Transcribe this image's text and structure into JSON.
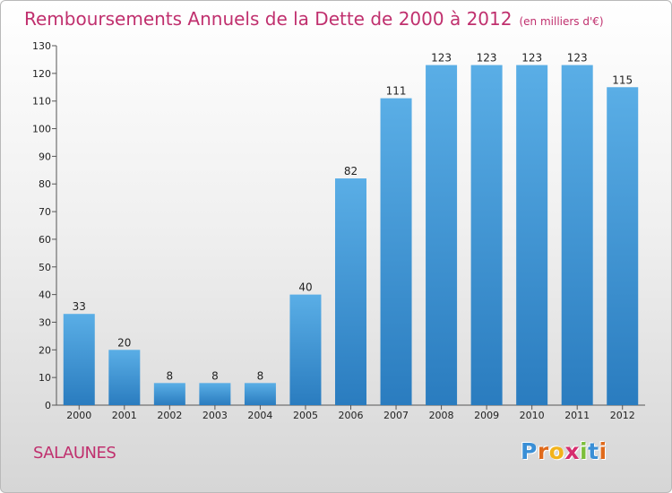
{
  "header": {
    "title": "Remboursements Annuels de la Dette de 2000 à 2012",
    "unit": "(en milliers d'€)"
  },
  "footer": {
    "place": "SALAUNES",
    "logo": [
      "P",
      "r",
      "o",
      "x",
      "i",
      "t",
      "i"
    ]
  },
  "colors": {
    "title": "#c0306e",
    "bar_top": "#5aaee6",
    "bar_bottom": "#2a7cbf",
    "logo": [
      "#3a8fd6",
      "#e06a1b",
      "#f2b31b",
      "#d62d6e",
      "#7cbf3a",
      "#3a8fd6",
      "#e06a1b"
    ]
  },
  "chart_data": {
    "type": "bar",
    "categories": [
      "2000",
      "2001",
      "2002",
      "2003",
      "2004",
      "2005",
      "2006",
      "2007",
      "2008",
      "2009",
      "2010",
      "2011",
      "2012"
    ],
    "values": [
      33,
      20,
      8,
      8,
      8,
      40,
      82,
      111,
      123,
      123,
      123,
      123,
      115
    ],
    "title": "Remboursements Annuels de la Dette de 2000 à 2012",
    "ylim": [
      0,
      130
    ],
    "yticks": [
      0,
      10,
      20,
      30,
      40,
      50,
      60,
      70,
      80,
      90,
      100,
      110,
      120,
      130
    ],
    "grid": false,
    "data_labels": true
  }
}
